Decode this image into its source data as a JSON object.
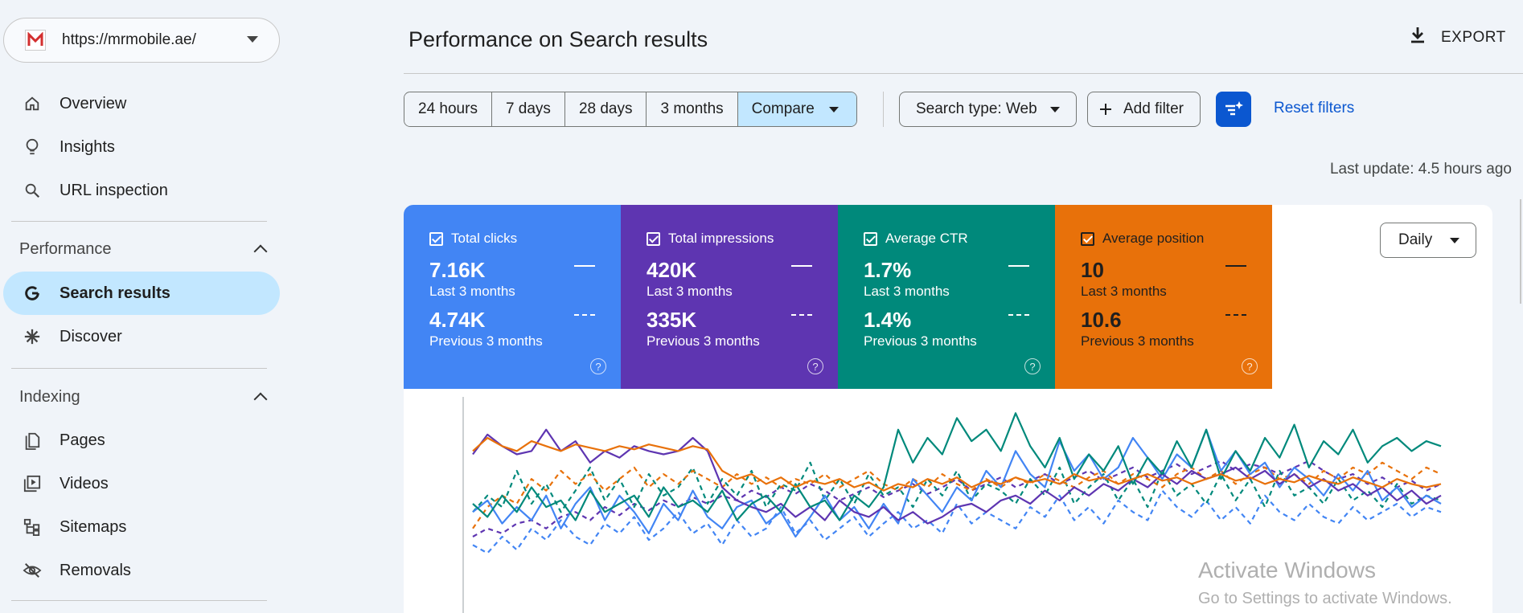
{
  "property": {
    "url": "https://mrmobile.ae/"
  },
  "nav": {
    "overview": "Overview",
    "insights": "Insights",
    "url_inspection": "URL inspection",
    "performance_section": "Performance",
    "search_results": "Search results",
    "discover": "Discover",
    "indexing_section": "Indexing",
    "pages": "Pages",
    "videos": "Videos",
    "sitemaps": "Sitemaps",
    "removals": "Removals"
  },
  "header": {
    "title": "Performance on Search results",
    "export_label": "EXPORT"
  },
  "toolbar": {
    "ranges": [
      "24 hours",
      "7 days",
      "28 days",
      "3 months"
    ],
    "compare_label": "Compare",
    "search_type": "Search type: Web",
    "add_filter": "Add filter",
    "reset_filters": "Reset filters",
    "last_update": "Last update: 4.5 hours ago"
  },
  "metrics": [
    {
      "label": "Total clicks",
      "current": "7.16K",
      "current_period": "Last 3 months",
      "previous": "4.74K",
      "previous_period": "Previous 3 months",
      "color": "#4285f4"
    },
    {
      "label": "Total impressions",
      "current": "420K",
      "current_period": "Last 3 months",
      "previous": "335K",
      "previous_period": "Previous 3 months",
      "color": "#5e35b1"
    },
    {
      "label": "Average CTR",
      "current": "1.7%",
      "current_period": "Last 3 months",
      "previous": "1.4%",
      "previous_period": "Previous 3 months",
      "color": "#00897b"
    },
    {
      "label": "Average position",
      "current": "10",
      "current_period": "Last 3 months",
      "previous": "10.6",
      "previous_period": "Previous 3 months",
      "color": "#e8710a"
    }
  ],
  "granularity": "Daily",
  "watermark": {
    "line1": "Activate Windows",
    "line2": "Go to Settings to activate Windows."
  },
  "chart_data": {
    "type": "line",
    "series": [
      {
        "name": "Total clicks",
        "period": "current",
        "color": "#4285f4",
        "dashed": false,
        "values": [
          0.35,
          0.42,
          0.28,
          0.38,
          0.3,
          0.45,
          0.25,
          0.4,
          0.5,
          0.3,
          0.45,
          0.35,
          0.22,
          0.4,
          0.3,
          0.48,
          0.32,
          0.25,
          0.38,
          0.42,
          0.28,
          0.35,
          0.2,
          0.32,
          0.45,
          0.3,
          0.38,
          0.25,
          0.4,
          0.28,
          0.55,
          0.45,
          0.35,
          0.5,
          0.42,
          0.6,
          0.5,
          0.72,
          0.58,
          0.5,
          0.78,
          0.6,
          0.7,
          0.55,
          0.62,
          0.8,
          0.68,
          0.55,
          0.7,
          0.62,
          0.85,
          0.6,
          0.72,
          0.58,
          0.65,
          0.5,
          0.62,
          0.55,
          0.45,
          0.58,
          0.48,
          0.6,
          0.42,
          0.5,
          0.38,
          0.45,
          0.4
        ]
      },
      {
        "name": "Total clicks",
        "period": "previous",
        "color": "#4285f4",
        "dashed": true,
        "values": [
          0.15,
          0.1,
          0.2,
          0.12,
          0.25,
          0.18,
          0.3,
          0.2,
          0.15,
          0.28,
          0.22,
          0.32,
          0.18,
          0.25,
          0.35,
          0.22,
          0.28,
          0.15,
          0.3,
          0.2,
          0.25,
          0.38,
          0.22,
          0.3,
          0.18,
          0.25,
          0.32,
          0.2,
          0.28,
          0.35,
          0.25,
          0.3,
          0.22,
          0.4,
          0.28,
          0.35,
          0.3,
          0.25,
          0.38,
          0.32,
          0.45,
          0.3,
          0.38,
          0.28,
          0.42,
          0.35,
          0.3,
          0.48,
          0.38,
          0.32,
          0.42,
          0.3,
          0.38,
          0.28,
          0.45,
          0.35,
          0.3,
          0.4,
          0.32,
          0.28,
          0.38,
          0.3,
          0.35,
          0.4,
          0.32,
          0.38,
          0.35
        ]
      },
      {
        "name": "Total impressions",
        "period": "current",
        "color": "#5e35b1",
        "dashed": false,
        "values": [
          0.7,
          0.82,
          0.75,
          0.7,
          0.72,
          0.85,
          0.72,
          0.78,
          0.65,
          0.72,
          0.68,
          0.75,
          0.72,
          0.7,
          0.72,
          0.8,
          0.72,
          0.5,
          0.42,
          0.38,
          0.35,
          0.4,
          0.32,
          0.38,
          0.3,
          0.42,
          0.35,
          0.32,
          0.38,
          0.3,
          0.35,
          0.28,
          0.32,
          0.38,
          0.4,
          0.35,
          0.42,
          0.45,
          0.4,
          0.48,
          0.42,
          0.5,
          0.45,
          0.52,
          0.48,
          0.55,
          0.5,
          0.58,
          0.52,
          0.6,
          0.55,
          0.58,
          0.62,
          0.55,
          0.6,
          0.52,
          0.58,
          0.5,
          0.55,
          0.48,
          0.52,
          0.45,
          0.5,
          0.42,
          0.48,
          0.4,
          0.45
        ]
      },
      {
        "name": "Total impressions",
        "period": "previous",
        "color": "#5e35b1",
        "dashed": true,
        "values": [
          0.2,
          0.25,
          0.22,
          0.28,
          0.3,
          0.25,
          0.32,
          0.35,
          0.3,
          0.38,
          0.33,
          0.4,
          0.36,
          0.42,
          0.38,
          0.44,
          0.4,
          0.45,
          0.42,
          0.48,
          0.44,
          0.5,
          0.46,
          0.52,
          0.48,
          0.42,
          0.46,
          0.5,
          0.44,
          0.48,
          0.52,
          0.46,
          0.5,
          0.55,
          0.48,
          0.52,
          0.56,
          0.5,
          0.54,
          0.58,
          0.52,
          0.56,
          0.6,
          0.54,
          0.58,
          0.62,
          0.56,
          0.6,
          0.64,
          0.58,
          0.62,
          0.66,
          0.6,
          0.64,
          0.62,
          0.58,
          0.62,
          0.66,
          0.6,
          0.55,
          0.58,
          0.52,
          0.56,
          0.5,
          0.54,
          0.48,
          0.52
        ]
      },
      {
        "name": "Average CTR",
        "period": "current",
        "color": "#00897b",
        "dashed": false,
        "values": [
          0.4,
          0.32,
          0.45,
          0.35,
          0.5,
          0.38,
          0.42,
          0.3,
          0.48,
          0.35,
          0.4,
          0.45,
          0.32,
          0.5,
          0.38,
          0.42,
          0.35,
          0.48,
          0.3,
          0.4,
          0.45,
          0.35,
          0.52,
          0.38,
          0.42,
          0.3,
          0.45,
          0.38,
          0.5,
          0.85,
          0.65,
          0.8,
          0.7,
          0.92,
          0.78,
          0.85,
          0.72,
          0.95,
          0.75,
          0.62,
          0.8,
          0.55,
          0.7,
          0.6,
          0.75,
          0.52,
          0.68,
          0.58,
          0.78,
          0.62,
          0.85,
          0.55,
          0.72,
          0.6,
          0.8,
          0.68,
          0.88,
          0.62,
          0.78,
          0.7,
          0.85,
          0.65,
          0.75,
          0.8,
          0.72,
          0.78,
          0.75
        ]
      },
      {
        "name": "Average CTR",
        "period": "previous",
        "color": "#00897b",
        "dashed": true,
        "values": [
          0.35,
          0.45,
          0.38,
          0.6,
          0.4,
          0.52,
          0.35,
          0.48,
          0.62,
          0.42,
          0.55,
          0.38,
          0.58,
          0.45,
          0.5,
          0.62,
          0.4,
          0.55,
          0.45,
          0.6,
          0.38,
          0.52,
          0.48,
          0.65,
          0.42,
          0.55,
          0.4,
          0.58,
          0.45,
          0.5,
          0.38,
          0.55,
          0.45,
          0.6,
          0.42,
          0.52,
          0.48,
          0.4,
          0.55,
          0.45,
          0.62,
          0.4,
          0.5,
          0.58,
          0.42,
          0.55,
          0.38,
          0.6,
          0.45,
          0.52,
          0.4,
          0.58,
          0.42,
          0.55,
          0.38,
          0.6,
          0.45,
          0.5,
          0.4,
          0.55,
          0.42,
          0.48,
          0.38,
          0.52,
          0.4,
          0.45,
          0.42
        ]
      },
      {
        "name": "Average position",
        "period": "current",
        "color": "#e8710a",
        "dashed": false,
        "values": [
          0.72,
          0.8,
          0.75,
          0.72,
          0.78,
          0.75,
          0.72,
          0.76,
          0.74,
          0.72,
          0.75,
          0.73,
          0.76,
          0.74,
          0.72,
          0.75,
          0.73,
          0.6,
          0.55,
          0.58,
          0.52,
          0.56,
          0.5,
          0.54,
          0.52,
          0.55,
          0.5,
          0.53,
          0.48,
          0.52,
          0.5,
          0.55,
          0.52,
          0.56,
          0.5,
          0.54,
          0.52,
          0.56,
          0.53,
          0.55,
          0.52,
          0.58,
          0.54,
          0.56,
          0.52,
          0.55,
          0.58,
          0.54,
          0.56,
          0.52,
          0.55,
          0.58,
          0.54,
          0.56,
          0.52,
          0.55,
          0.53,
          0.57,
          0.54,
          0.52,
          0.56,
          0.53,
          0.5,
          0.55,
          0.52,
          0.5,
          0.52
        ]
      },
      {
        "name": "Average position",
        "period": "previous",
        "color": "#e8710a",
        "dashed": true,
        "values": [
          0.25,
          0.38,
          0.45,
          0.4,
          0.55,
          0.48,
          0.6,
          0.52,
          0.58,
          0.48,
          0.55,
          0.62,
          0.5,
          0.58,
          0.52,
          0.6,
          0.55,
          0.5,
          0.58,
          0.52,
          0.56,
          0.5,
          0.55,
          0.52,
          0.58,
          0.5,
          0.55,
          0.6,
          0.52,
          0.48,
          0.55,
          0.5,
          0.58,
          0.52,
          0.48,
          0.55,
          0.5,
          0.56,
          0.52,
          0.58,
          0.54,
          0.5,
          0.56,
          0.6,
          0.52,
          0.58,
          0.55,
          0.5,
          0.58,
          0.62,
          0.55,
          0.6,
          0.52,
          0.58,
          0.62,
          0.55,
          0.58,
          0.52,
          0.6,
          0.55,
          0.62,
          0.58,
          0.65,
          0.6,
          0.55,
          0.62,
          0.58
        ]
      }
    ]
  }
}
